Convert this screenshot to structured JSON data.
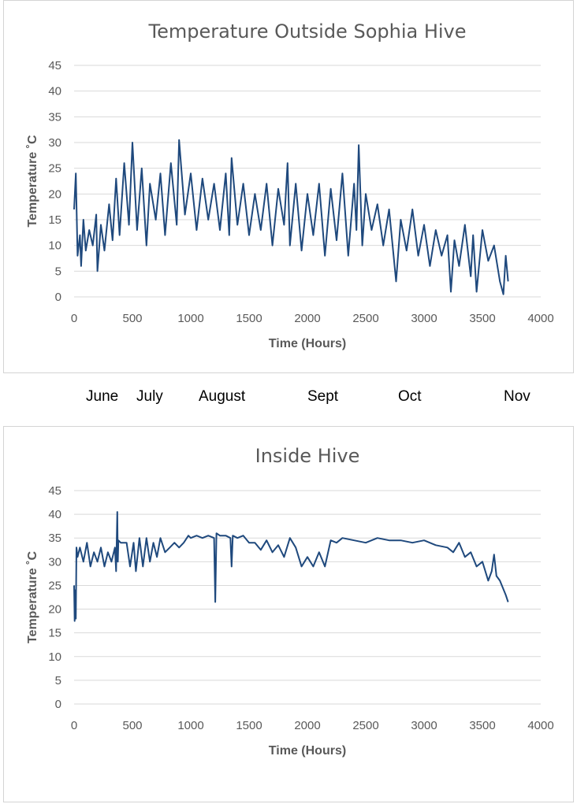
{
  "months": [
    "June",
    "July",
    "August",
    "Sept",
    "Oct",
    "Nov"
  ],
  "chart_data": [
    {
      "type": "line",
      "title": "Temperature Outside Sophia Hive",
      "xlabel": "Time (Hours)",
      "ylabel": "Temperature ˚C",
      "xlim": [
        0,
        4000
      ],
      "ylim": [
        0,
        45
      ],
      "x_ticks": [
        "0",
        "500",
        "1000",
        "1500",
        "2000",
        "2500",
        "3000",
        "3500",
        "4000"
      ],
      "y_ticks": [
        "0",
        "5",
        "10",
        "15",
        "20",
        "25",
        "30",
        "35",
        "40",
        "45"
      ],
      "grid": "horizontal",
      "color": "#1f497d",
      "series": [
        {
          "x": [
            0,
            15,
            30,
            50,
            60,
            80,
            100,
            130,
            160,
            190,
            200,
            230,
            260,
            300,
            330,
            360,
            390,
            430,
            470,
            500,
            540,
            580,
            620,
            650,
            700,
            740,
            780,
            830,
            880,
            900,
            950,
            1000,
            1050,
            1100,
            1150,
            1200,
            1250,
            1300,
            1330,
            1350,
            1400,
            1450,
            1500,
            1550,
            1600,
            1650,
            1700,
            1750,
            1800,
            1830,
            1850,
            1900,
            1950,
            2000,
            2050,
            2100,
            2150,
            2200,
            2250,
            2300,
            2350,
            2400,
            2420,
            2440,
            2470,
            2500,
            2550,
            2600,
            2650,
            2700,
            2760,
            2800,
            2850,
            2900,
            2950,
            3000,
            3050,
            3100,
            3150,
            3200,
            3230,
            3260,
            3300,
            3350,
            3400,
            3420,
            3450,
            3500,
            3550,
            3600,
            3650,
            3680,
            3700,
            3720
          ],
          "y": [
            17,
            24,
            8,
            12,
            6,
            15,
            9,
            13,
            10,
            16,
            5,
            14,
            9,
            18,
            11,
            23,
            12,
            26,
            14,
            30,
            13,
            25,
            10,
            22,
            15,
            24,
            12,
            26,
            14,
            30.5,
            16,
            24,
            13,
            23,
            15,
            22,
            13,
            24,
            12,
            27,
            14,
            22,
            12,
            20,
            13,
            22,
            10,
            21,
            14,
            26,
            10,
            22,
            9,
            20,
            12,
            22,
            8,
            21,
            11,
            24,
            8,
            22,
            13,
            29.5,
            10,
            20,
            13,
            18,
            10,
            17,
            3,
            15,
            9,
            17,
            8,
            14,
            6,
            13,
            8,
            12,
            1,
            11,
            6,
            14,
            4,
            12,
            1,
            13,
            7,
            10,
            3,
            0.5,
            8,
            3
          ]
        }
      ]
    },
    {
      "type": "line",
      "title": "Inside Hive",
      "xlabel": "Time (Hours)",
      "ylabel": "Temperature ˚C",
      "xlim": [
        0,
        4000
      ],
      "ylim": [
        0,
        45
      ],
      "x_ticks": [
        "0",
        "500",
        "1000",
        "1500",
        "2000",
        "2500",
        "3000",
        "3500",
        "4000"
      ],
      "y_ticks": [
        "0",
        "5",
        "10",
        "15",
        "20",
        "25",
        "30",
        "35",
        "40",
        "45"
      ],
      "grid": "horizontal",
      "color": "#1f497d",
      "series": [
        {
          "x": [
            0,
            5,
            10,
            15,
            20,
            30,
            50,
            80,
            110,
            140,
            170,
            200,
            230,
            260,
            290,
            320,
            350,
            360,
            370,
            375,
            380,
            400,
            420,
            450,
            480,
            510,
            530,
            560,
            590,
            620,
            650,
            680,
            710,
            740,
            780,
            820,
            860,
            900,
            940,
            980,
            1000,
            1050,
            1100,
            1150,
            1200,
            1210,
            1220,
            1250,
            1300,
            1340,
            1350,
            1360,
            1400,
            1450,
            1500,
            1550,
            1600,
            1650,
            1700,
            1750,
            1800,
            1850,
            1900,
            1950,
            2000,
            2050,
            2100,
            2150,
            2200,
            2250,
            2300,
            2400,
            2500,
            2600,
            2700,
            2800,
            2900,
            3000,
            3100,
            3200,
            3250,
            3300,
            3350,
            3400,
            3450,
            3500,
            3550,
            3580,
            3600,
            3620,
            3650,
            3700,
            3720
          ],
          "y": [
            25,
            17.5,
            24,
            18,
            33,
            31,
            33,
            30,
            34,
            29,
            32,
            30,
            33,
            29,
            32,
            30,
            33,
            28,
            40.5,
            30,
            34.5,
            34,
            34,
            34,
            29,
            34,
            28,
            35,
            29,
            35,
            30,
            34,
            31,
            35,
            32,
            33,
            34,
            33,
            34,
            35.5,
            35,
            35.5,
            35,
            35.5,
            35,
            21.5,
            36,
            35.5,
            35.5,
            35,
            29,
            35.5,
            35,
            35.5,
            34,
            34,
            32.5,
            34.5,
            32,
            33.5,
            31,
            35,
            33,
            29,
            31,
            29,
            32,
            29,
            34.5,
            34,
            35,
            34.5,
            34,
            35,
            34.5,
            34.5,
            34,
            34.5,
            33.5,
            33,
            32,
            34,
            31,
            32,
            29,
            30,
            26,
            28,
            31.5,
            27,
            26,
            23,
            21.5
          ]
        }
      ]
    }
  ]
}
